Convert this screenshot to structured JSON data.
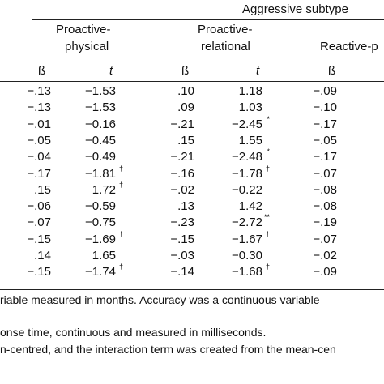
{
  "table": {
    "spanner": "Aggressive subtype",
    "groups": [
      {
        "line1": "Proactive-",
        "line2": "physical"
      },
      {
        "line1": "Proactive-",
        "line2": "relational"
      },
      {
        "line1": "Reactive-p",
        "line2": ""
      }
    ],
    "col_headers": [
      "ß",
      "t",
      "ß",
      "t",
      "ß"
    ],
    "rows": [
      {
        "b1": "−.13",
        "t1": "−1.53",
        "t1_sup": "",
        "b2": ".10",
        "t2": "1.18",
        "t2_sup": "",
        "b3": "−.09"
      },
      {
        "b1": "−.13",
        "t1": "−1.53",
        "t1_sup": "",
        "b2": ".09",
        "t2": "1.03",
        "t2_sup": "",
        "b3": "−.10"
      },
      {
        "b1": "−.01",
        "t1": "−0.16",
        "t1_sup": "",
        "b2": "−.21",
        "t2": "−2.45",
        "t2_sup": "*",
        "b3": "−.17"
      },
      {
        "b1": "−.05",
        "t1": "−0.45",
        "t1_sup": "",
        "b2": ".15",
        "t2": "1.55",
        "t2_sup": "",
        "b3": "−.05"
      },
      {
        "b1": "−.04",
        "t1": "−0.49",
        "t1_sup": "",
        "b2": "−.21",
        "t2": "−2.48",
        "t2_sup": "*",
        "b3": "−.17"
      },
      {
        "b1": "−.17",
        "t1": "−1.81",
        "t1_sup": "†",
        "b2": "−.16",
        "t2": "−1.78",
        "t2_sup": "†",
        "b3": "−.07"
      },
      {
        "b1": ".15",
        "t1": "1.72",
        "t1_sup": "†",
        "b2": "−.02",
        "t2": "−0.22",
        "t2_sup": "",
        "b3": "−.08"
      },
      {
        "b1": "−.06",
        "t1": "−0.59",
        "t1_sup": "",
        "b2": ".13",
        "t2": "1.42",
        "t2_sup": "",
        "b3": "−.08"
      },
      {
        "b1": "−.07",
        "t1": "−0.75",
        "t1_sup": "",
        "b2": "−.23",
        "t2": "−2.72",
        "t2_sup": "**",
        "b3": "−.19"
      },
      {
        "b1": "−.15",
        "t1": "−1.69",
        "t1_sup": "†",
        "b2": "−.15",
        "t2": "−1.67",
        "t2_sup": "†",
        "b3": "−.07"
      },
      {
        "b1": ".14",
        "t1": "1.65",
        "t1_sup": "",
        "b2": "−.03",
        "t2": "−0.30",
        "t2_sup": "",
        "b3": "−.02"
      },
      {
        "b1": "−.15",
        "t1": "−1.74",
        "t1_sup": "†",
        "b2": "−.14",
        "t2": "−1.68",
        "t2_sup": "†",
        "b3": "−.09"
      }
    ]
  },
  "notes": {
    "line1": "riable measured in months. Accuracy was a continuous variable",
    "line2": "onse time, continuous and measured in milliseconds.",
    "line3": "n-centred, and the interaction term was created from the mean-cen"
  }
}
